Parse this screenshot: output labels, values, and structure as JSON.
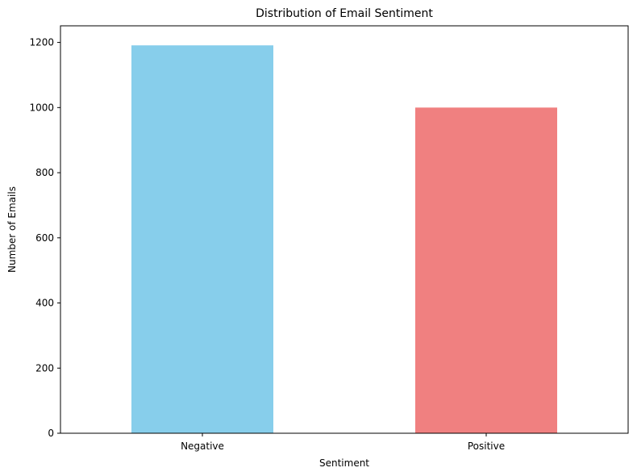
{
  "chart_data": {
    "type": "bar",
    "title": "Distribution of Email Sentiment",
    "xlabel": "Sentiment",
    "ylabel": "Number of Emails",
    "categories": [
      "Negative",
      "Positive"
    ],
    "values": [
      1191,
      1000
    ],
    "colors": [
      "#87ceeb",
      "#f08080"
    ],
    "ylim": [
      0,
      1251
    ],
    "yticks": [
      0,
      200,
      400,
      600,
      800,
      1000,
      1200
    ],
    "grid": false,
    "legend": "none"
  }
}
